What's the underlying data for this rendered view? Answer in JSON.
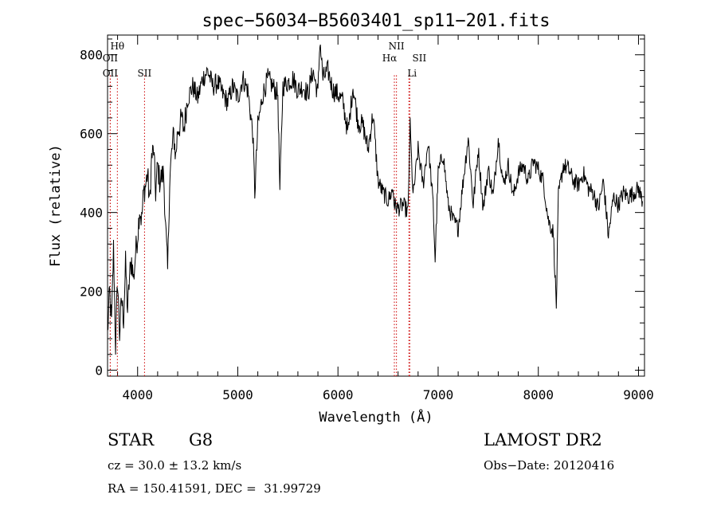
{
  "chart_data": {
    "type": "line",
    "title": "spec−56034−B5603401_sp11−201.fits",
    "xlabel": "Wavelength (Å)",
    "ylabel": "Flux (relative)",
    "xlim": [
      3700,
      9060
    ],
    "ylim": [
      -15,
      850
    ],
    "x_ticks": [
      4000,
      5000,
      6000,
      7000,
      8000,
      9000
    ],
    "y_ticks": [
      0,
      200,
      400,
      600,
      800
    ],
    "grid": false,
    "series": [
      {
        "x": [
          3700,
          3720,
          3740,
          3760,
          3780,
          3800,
          3820,
          3840,
          3860,
          3880,
          3900,
          3920,
          3940,
          3960,
          3980,
          4000,
          4020,
          4040,
          4060,
          4080,
          4100,
          4120,
          4140,
          4160,
          4180,
          4200,
          4220,
          4240,
          4260,
          4280,
          4300,
          4320,
          4340,
          4360,
          4380,
          4400,
          4420,
          4440,
          4460,
          4480,
          4500,
          4550,
          4600,
          4650,
          4700,
          4750,
          4800,
          4850,
          4900,
          4950,
          5000,
          5050,
          5100,
          5150,
          5170,
          5200,
          5250,
          5300,
          5350,
          5400,
          5420,
          5450,
          5500,
          5550,
          5600,
          5650,
          5700,
          5750,
          5800,
          5820,
          5850,
          5900,
          5950,
          6000,
          6050,
          6100,
          6150,
          6200,
          6250,
          6300,
          6350,
          6400,
          6450,
          6500,
          6550,
          6563,
          6600,
          6650,
          6700,
          6720,
          6750,
          6800,
          6850,
          6900,
          6950,
          6970,
          7000,
          7050,
          7100,
          7150,
          7200,
          7250,
          7300,
          7350,
          7400,
          7450,
          7500,
          7550,
          7600,
          7650,
          7700,
          7750,
          7800,
          7850,
          7900,
          7950,
          8000,
          8050,
          8100,
          8150,
          8180,
          8200,
          8250,
          8300,
          8350,
          8400,
          8450,
          8500,
          8550,
          8600,
          8650,
          8700,
          8750,
          8800,
          8850,
          8900,
          8950,
          9000,
          9040
        ],
        "y": [
          90,
          200,
          120,
          310,
          60,
          230,
          90,
          180,
          130,
          270,
          150,
          240,
          280,
          230,
          300,
          340,
          410,
          380,
          450,
          470,
          500,
          420,
          540,
          560,
          450,
          520,
          480,
          490,
          500,
          360,
          250,
          480,
          550,
          600,
          540,
          610,
          620,
          640,
          610,
          650,
          690,
          720,
          690,
          740,
          760,
          720,
          730,
          700,
          680,
          720,
          690,
          740,
          710,
          600,
          450,
          620,
          700,
          740,
          720,
          700,
          450,
          720,
          730,
          740,
          710,
          720,
          700,
          760,
          700,
          840,
          740,
          760,
          710,
          700,
          680,
          600,
          720,
          630,
          620,
          560,
          650,
          480,
          450,
          430,
          460,
          420,
          410,
          420,
          400,
          620,
          440,
          560,
          470,
          580,
          420,
          280,
          500,
          550,
          420,
          380,
          360,
          480,
          590,
          420,
          560,
          410,
          510,
          440,
          590,
          470,
          520,
          440,
          500,
          520,
          480,
          530,
          510,
          480,
          380,
          350,
          160,
          440,
          520,
          510,
          480,
          470,
          500,
          460,
          450,
          410,
          480,
          340,
          440,
          420,
          450,
          440,
          450,
          460,
          430
        ],
        "color": "#000000"
      }
    ],
    "line_markers": [
      {
        "label": "Hθ",
        "x": 3798,
        "color": "#cc0000"
      },
      {
        "label": "OII",
        "x": 3727,
        "color": "#cc0000"
      },
      {
        "label": "OII",
        "x": 3727,
        "color": "#cc0000"
      },
      {
        "label": "SII",
        "x": 4069,
        "color": "#cc0000"
      },
      {
        "label": "NII",
        "x": 6584,
        "color": "#cc0000"
      },
      {
        "label": "Hα",
        "x": 6563,
        "color": "#cc0000"
      },
      {
        "label": "SII",
        "x": 6717,
        "color": "#cc0000"
      },
      {
        "label": "Li",
        "x": 6708,
        "color": "#cc0000"
      }
    ]
  },
  "info": {
    "object_class": "STAR",
    "subclass": "G8",
    "survey": "LAMOST DR2",
    "cz": "cz = 30.0 ± 13.2 km/s",
    "obs_date": "Obs−Date: 20120416",
    "coords": "RA = 150.41591, DEC =  31.99729"
  }
}
